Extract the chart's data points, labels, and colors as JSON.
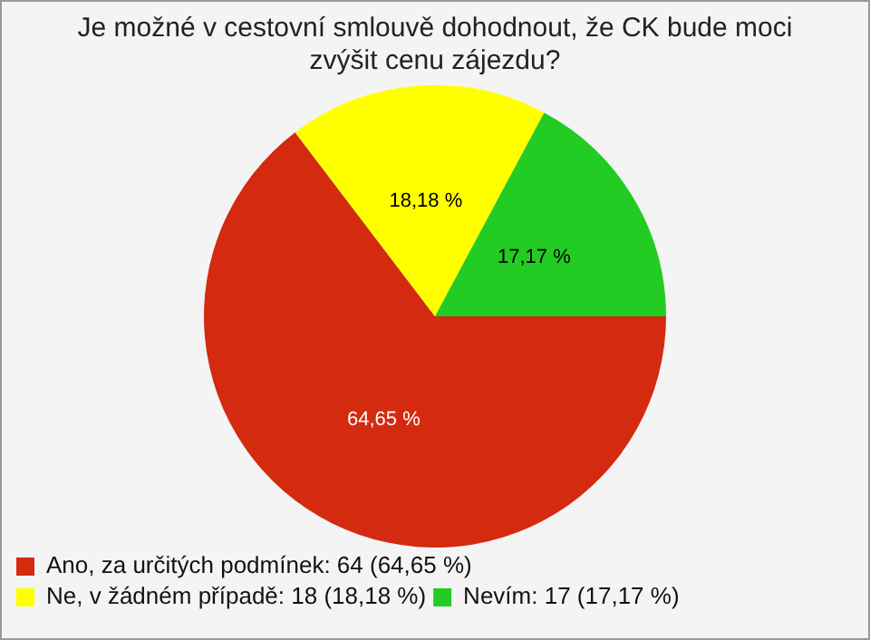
{
  "chart_data": {
    "type": "pie",
    "title": "Je možné v cestovní smlouvě dohodnout, že CK bude moci zvýšit cenu zájezdu?",
    "categories": [
      "Ano, za určitých podmínek: 64 (64,65 %)",
      "Ne, v žádném případě: 18 (18,18 %)",
      "Nevím: 17 (17,17 %)"
    ],
    "values": [
      64.65,
      18.18,
      17.17
    ],
    "colors": [
      "#d42a10",
      "#ffff00",
      "#22cc22"
    ],
    "value_labels": [
      "64,65 %",
      "18,18 %",
      "17,17 %"
    ],
    "legend": "bottom left"
  }
}
